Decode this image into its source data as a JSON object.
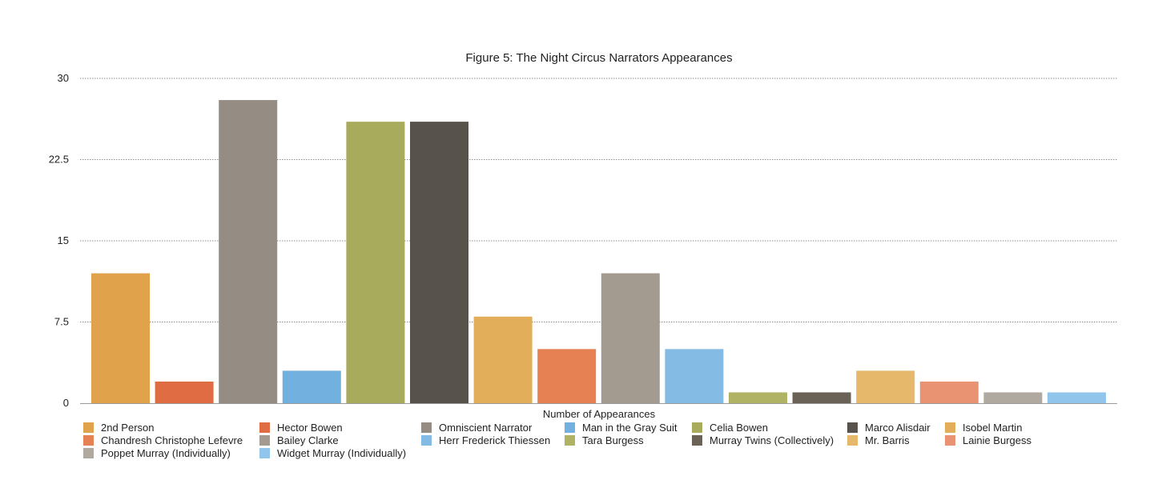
{
  "chart_data": {
    "type": "bar",
    "title": "Figure 5: The Night Circus Narrators Appearances",
    "xlabel": "Number of Appearances",
    "ylabel": "",
    "ylim": [
      0,
      30
    ],
    "yticks": [
      0,
      7.5,
      15,
      22.5,
      30
    ],
    "ytick_labels": [
      "0",
      "7.5",
      "15",
      "22.5",
      "30"
    ],
    "grid": true,
    "legend_position": "bottom",
    "series": [
      {
        "name": "2nd Person",
        "value": 12,
        "color": "#E0A24B"
      },
      {
        "name": "Hector Bowen",
        "value": 2,
        "color": "#E06C43"
      },
      {
        "name": "Omniscient Narrator",
        "value": 28,
        "color": "#958D83"
      },
      {
        "name": "Man in the Gray Suit",
        "value": 3,
        "color": "#72B0E0"
      },
      {
        "name": "Celia Bowen",
        "value": 26,
        "color": "#A9AB5C"
      },
      {
        "name": "Marco Alisdair",
        "value": 26,
        "color": "#57524B"
      },
      {
        "name": "Isobel Martin",
        "value": 8,
        "color": "#E3AE59"
      },
      {
        "name": "Chandresh Christophe Lefevre",
        "value": 5,
        "color": "#E58152"
      },
      {
        "name": "Bailey Clarke",
        "value": 12,
        "color": "#A39B90"
      },
      {
        "name": "Herr Frederick Thiessen",
        "value": 5,
        "color": "#83BBE5"
      },
      {
        "name": "Tara Burgess",
        "value": 1,
        "color": "#B1B364"
      },
      {
        "name": "Murray Twins (Collectively)",
        "value": 1,
        "color": "#6A6157"
      },
      {
        "name": "Mr. Barris",
        "value": 3,
        "color": "#E6B86C"
      },
      {
        "name": "Lainie Burgess",
        "value": 2,
        "color": "#E99372"
      },
      {
        "name": "Poppet Murray (Individually)",
        "value": 1,
        "color": "#B0A99F"
      },
      {
        "name": "Widget Murray (Individually)",
        "value": 1,
        "color": "#92C5EC"
      }
    ]
  }
}
